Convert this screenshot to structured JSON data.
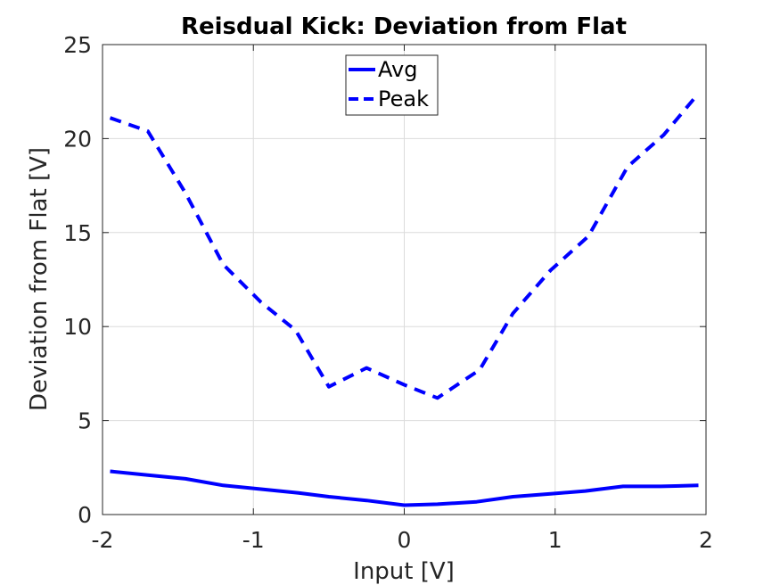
{
  "chart_data": {
    "type": "line",
    "title": "Reisdual Kick: Deviation from Flat",
    "xlabel": "Input [V]",
    "ylabel": "Deviation from Flat [V]",
    "xlim": [
      -2,
      2
    ],
    "ylim": [
      0,
      25
    ],
    "xticks": [
      -2,
      -1,
      0,
      1,
      2
    ],
    "xtick_labels": [
      "-2",
      "-1",
      "0",
      "1",
      "2"
    ],
    "yticks": [
      0,
      5,
      10,
      15,
      20,
      25
    ],
    "ytick_labels": [
      "0",
      "5",
      "10",
      "15",
      "20",
      "25"
    ],
    "grid": true,
    "legend": "top-center",
    "color": "#0000ff",
    "series": [
      {
        "name": "Avg",
        "style": "solid",
        "x": [
          -1.95,
          -1.7,
          -1.45,
          -1.2,
          -0.95,
          -0.7,
          -0.5,
          -0.25,
          0,
          0.22,
          0.48,
          0.72,
          0.97,
          1.2,
          1.45,
          1.7,
          1.95
        ],
        "y": [
          2.3,
          2.1,
          1.9,
          1.55,
          1.35,
          1.15,
          0.95,
          0.75,
          0.5,
          0.55,
          0.68,
          0.95,
          1.1,
          1.25,
          1.5,
          1.5,
          1.55
        ]
      },
      {
        "name": "Peak",
        "style": "dashed",
        "x": [
          -1.95,
          -1.7,
          -1.45,
          -1.2,
          -0.95,
          -0.72,
          -0.5,
          -0.25,
          0,
          0.22,
          0.5,
          0.72,
          0.97,
          1.22,
          1.48,
          1.72,
          1.95
        ],
        "y": [
          21.1,
          20.4,
          17.1,
          13.3,
          11.3,
          9.8,
          6.8,
          7.8,
          6.9,
          6.2,
          7.7,
          10.7,
          13.0,
          14.8,
          18.5,
          20.2,
          22.4
        ]
      }
    ]
  }
}
